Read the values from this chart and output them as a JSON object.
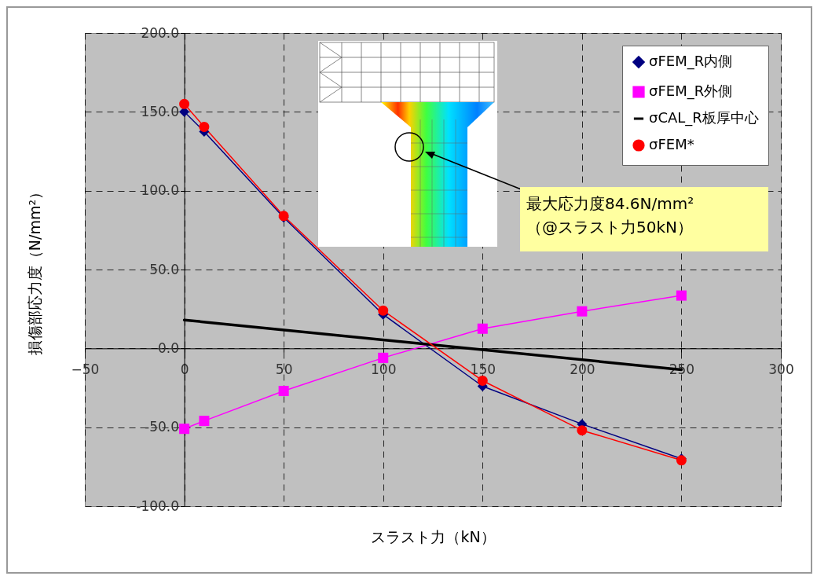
{
  "chart_data": {
    "type": "line",
    "xlabel": "スラスト力（kN）",
    "ylabel": "損傷部応力度（N/mm²）",
    "x": [
      0,
      10,
      50,
      100,
      150,
      200,
      250
    ],
    "series": [
      {
        "name": "σFEM_R内側",
        "color": "#000080",
        "marker": "diamond",
        "values": [
          150,
          137.5,
          83,
          21.5,
          -24,
          -48,
          -70
        ]
      },
      {
        "name": "σFEM_R外側",
        "color": "#ff00ff",
        "marker": "square",
        "values": [
          -51,
          -46,
          -27,
          -6,
          12.5,
          23.5,
          33.5
        ]
      },
      {
        "name": "σCAL_R板厚中心",
        "color": "#000000",
        "marker": "none",
        "x": [
          0,
          250
        ],
        "values": [
          18,
          -13.5
        ]
      },
      {
        "name": "σFEM*",
        "color": "#ff0000",
        "marker": "circle",
        "values": [
          155,
          140.5,
          84,
          24,
          -20.5,
          -52,
          -71
        ]
      }
    ],
    "xlim": [
      -50,
      300
    ],
    "xticks": [
      -50,
      0,
      50,
      100,
      150,
      200,
      250,
      300
    ],
    "ylim": [
      -100,
      200
    ],
    "yticks": [
      {
        "value": -100,
        "label": "-100.0"
      },
      {
        "value": -50,
        "label": "-50.0"
      },
      {
        "value": 0,
        "label": "0.0"
      },
      {
        "value": 50,
        "label": "50.0"
      },
      {
        "value": 100,
        "label": "100.0"
      },
      {
        "value": 150,
        "label": "150.0"
      },
      {
        "value": 200,
        "label": "200.0"
      }
    ],
    "grid": true,
    "legend": "top right",
    "line_style": "solid",
    "annotations": [
      "最大応力度84.6N/mm²\n（@スラスト力50kN）"
    ]
  }
}
